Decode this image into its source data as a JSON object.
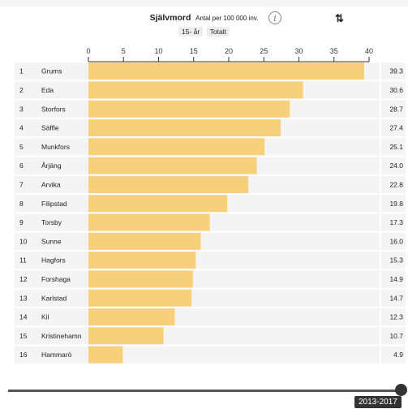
{
  "header": {
    "title": "Självmord",
    "subtitle": "Antal per 100 000 inv.",
    "info_icon": "info-icon",
    "sort_icon": "sort-icon",
    "sort_glyph": "⇅",
    "info_glyph": "i"
  },
  "filters": [
    "15- år",
    "Totalt"
  ],
  "slider": {
    "label": "2013-2017"
  },
  "colors": {
    "bar": "#f8cf7b",
    "row_band": "#f4f4f4"
  },
  "chart_data": {
    "type": "bar",
    "orientation": "horizontal",
    "title": "Självmord",
    "subtitle": "Antal per 100 000 inv.",
    "xlim": [
      0,
      40
    ],
    "xticks": [
      0,
      5,
      10,
      15,
      20,
      25,
      30,
      35,
      40
    ],
    "ranks": [
      1,
      2,
      3,
      4,
      5,
      6,
      7,
      8,
      9,
      10,
      11,
      12,
      13,
      14,
      15,
      16
    ],
    "categories": [
      "Grums",
      "Eda",
      "Storfors",
      "Säffle",
      "Munkfors",
      "Årjäng",
      "Arvika",
      "Filipstad",
      "Torsby",
      "Sunne",
      "Hagfors",
      "Forshaga",
      "Karlstad",
      "Kil",
      "Kristinehamn",
      "Hammarö"
    ],
    "values": [
      39.3,
      30.6,
      28.7,
      27.4,
      25.1,
      24.0,
      22.8,
      19.8,
      17.3,
      16.0,
      15.3,
      14.9,
      14.7,
      12.3,
      10.7,
      4.9
    ],
    "value_labels": [
      "39.3",
      "30.6",
      "28.7",
      "27.4",
      "25.1",
      "24.0",
      "22.8",
      "19.8",
      "17.3",
      "16.0",
      "15.3",
      "14.9",
      "14.7",
      "12.3",
      "10.7",
      "4.9"
    ]
  }
}
